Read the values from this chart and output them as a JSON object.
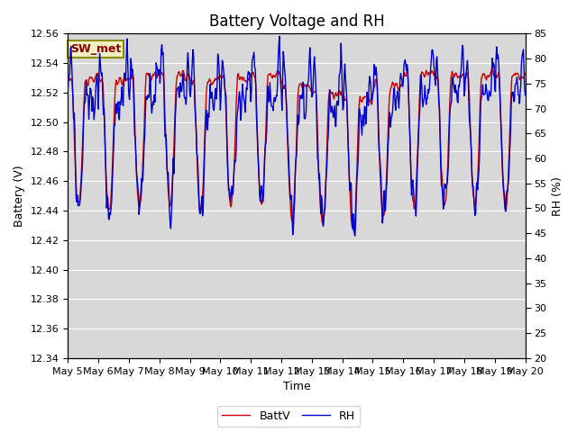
{
  "title": "Battery Voltage and RH",
  "xlabel": "Time",
  "ylabel_left": "Battery (V)",
  "ylabel_right": "RH (%)",
  "station_label": "SW_met",
  "ylim_left": [
    12.34,
    12.56
  ],
  "ylim_right": [
    20,
    85
  ],
  "yticks_left": [
    12.34,
    12.36,
    12.38,
    12.4,
    12.42,
    12.44,
    12.46,
    12.48,
    12.5,
    12.52,
    12.54,
    12.56
  ],
  "yticks_right": [
    20,
    25,
    30,
    35,
    40,
    45,
    50,
    55,
    60,
    65,
    70,
    75,
    80,
    85
  ],
  "xtick_labels": [
    "May 5",
    "May 6",
    "May 7",
    "May 8",
    "May 9",
    "May 10",
    "May 11",
    "May 12",
    "May 13",
    "May 14",
    "May 15",
    "May 16",
    "May 17",
    "May 18",
    "May 19",
    "May 20"
  ],
  "color_batt": "#cc0000",
  "color_rh": "#0000cc",
  "legend_labels": [
    "BattV",
    "RH"
  ],
  "background_color": "#ffffff",
  "plot_bg_color": "#d8d8d8",
  "grid_color": "#ffffff",
  "title_fontsize": 12,
  "axis_fontsize": 9,
  "tick_fontsize": 8
}
